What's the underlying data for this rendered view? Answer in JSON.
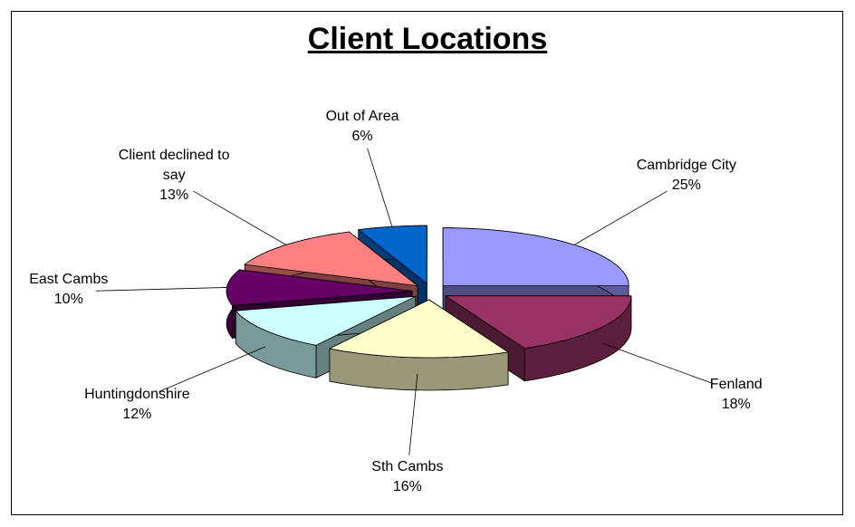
{
  "chart_data": {
    "type": "pie3d",
    "title": "Client Locations",
    "categories": [
      "Cambridge City",
      "Fenland",
      "Sth Cambs",
      "Huntingdonshire",
      "East Cambs",
      "Client declined to say",
      "Out of Area"
    ],
    "values": [
      25,
      18,
      16,
      12,
      10,
      13,
      6
    ],
    "value_labels": [
      "25%",
      "18%",
      "16%",
      "12%",
      "10%",
      "13%",
      "6%"
    ],
    "colors": [
      "#9999ff",
      "#993366",
      "#ffffcc",
      "#ccffff",
      "#660066",
      "#ff8080",
      "#0066cc"
    ]
  }
}
